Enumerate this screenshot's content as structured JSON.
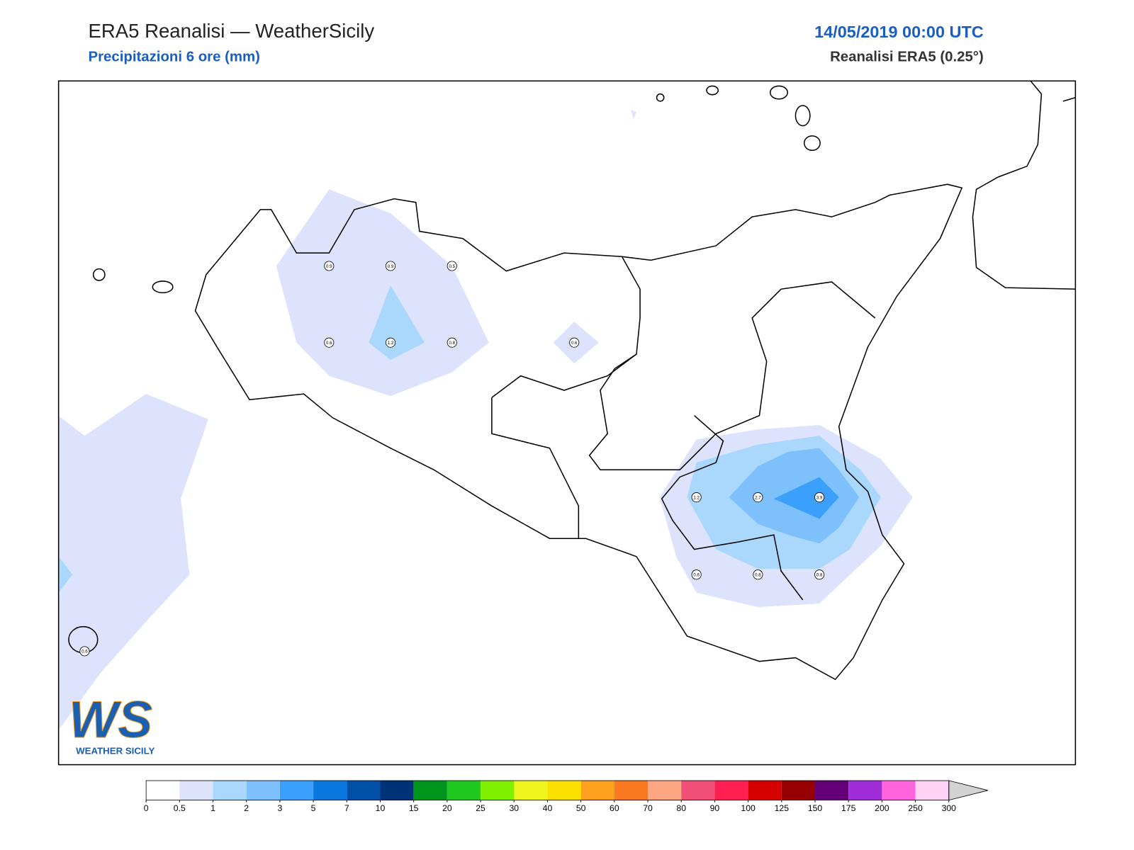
{
  "header": {
    "title": "ERA5 Reanalisi — WeatherSicily",
    "subtitle": "Precipitazioni 6 ore (mm)",
    "datetime": "14/05/2019 00:00 UTC",
    "source": "Reanalisi ERA5 (0.25°)"
  },
  "map": {
    "points": [
      {
        "value": 0.9
      },
      {
        "value": 0.9
      },
      {
        "value": 0.5
      },
      {
        "value": 0.6
      },
      {
        "value": 1.2
      },
      {
        "value": 0.8
      },
      {
        "value": 0.6
      },
      {
        "value": 1.2
      },
      {
        "value": 2.7
      },
      {
        "value": 3.9
      },
      {
        "value": 0.6
      },
      {
        "value": 0.8
      },
      {
        "value": 0.8
      },
      {
        "value": 0.6
      }
    ]
  },
  "legend": {
    "ticks": [
      0,
      0.5,
      1,
      2,
      3,
      5,
      7,
      10,
      15,
      20,
      25,
      30,
      40,
      50,
      60,
      70,
      80,
      90,
      100,
      125,
      150,
      175,
      200,
      250,
      300
    ],
    "colors": [
      "#ffffff",
      "#dde3fc",
      "#aad7fc",
      "#7ec0fc",
      "#3aa0fc",
      "#0a78e0",
      "#0050a8",
      "#003278",
      "#00961e",
      "#1ec81e",
      "#7ef000",
      "#f0f51e",
      "#fae100",
      "#fca01e",
      "#fa7820",
      "#fca682",
      "#f05078",
      "#ff1e50",
      "#d70000",
      "#960000",
      "#640078",
      "#a02dd7",
      "#ff64dc",
      "#ffd2f5",
      "#d3d3d3"
    ]
  },
  "logo": {
    "mark": "WS",
    "text": "WEATHER SICILY"
  }
}
